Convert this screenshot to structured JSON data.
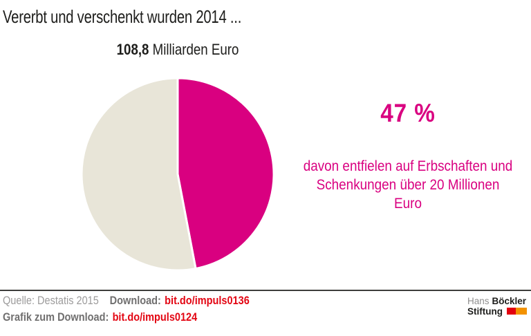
{
  "header": {
    "title": "Vererbt und verschenkt wurden 2014 ...",
    "subtitle_value": "108,8",
    "subtitle_unit": " Milliarden Euro"
  },
  "callout": {
    "percent": "47 %",
    "lines": [
      "davon entfielen auf Erbschaften und",
      "Schenkungen über 20 Millionen Euro"
    ]
  },
  "chart_data": {
    "type": "pie",
    "title": "Vererbt und verschenkt wurden 2014 ...",
    "total_label": "108,8 Milliarden Euro",
    "values": [
      47,
      53
    ],
    "labels": [
      "Erbschaften und Schenkungen über 20 Millionen Euro",
      ""
    ],
    "colors": [
      "#d90080",
      "#e8e5d8"
    ],
    "start_angle_deg": 0,
    "direction": "clockwise",
    "separator_color": "#ffffff",
    "annotation": "47 % davon entfielen auf Erbschaften und Schenkungen über 20 Millionen Euro",
    "legend_position": "none",
    "grid": false
  },
  "footer": {
    "source": "Quelle: Destatis 2015",
    "download_label": "Download:",
    "download_url": "bit.do/impuls0136",
    "grafik_label": "Grafik zum Download:",
    "grafik_url": "bit.do/impuls0124"
  },
  "logo": {
    "name_light": "Hans",
    "name_bold": "Böckler",
    "line2_bold": "Stiftung"
  },
  "colors": {
    "magenta": "#d90080",
    "beige": "#e8e5d8",
    "link_red": "#e30613",
    "logo_red": "#e3000f",
    "logo_orange": "#f39200",
    "text_dark": "#1d1d1b",
    "text_gray": "#9c9b9b",
    "text_gray_bold": "#706f6f"
  }
}
